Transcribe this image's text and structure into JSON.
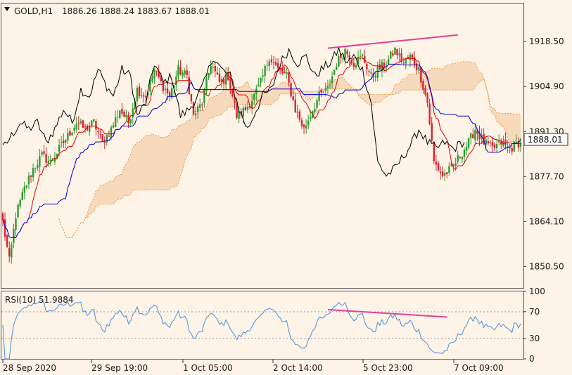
{
  "header": {
    "symbol": "GOLD,H1",
    "ohlc": "1886.26 1888.24 1883.67 1888.01"
  },
  "rsi_header": "RSI(10) 51.9884",
  "current_price": "1888.01",
  "colors": {
    "background": "#fdf3e6",
    "bull": "#2e9b2e",
    "bear": "#dd2030",
    "kijun": "#0000cc",
    "tenkan": "#dd0000",
    "chikou": "#000000",
    "cloud": "#e8964a",
    "trendline": "#e0409a",
    "rsi": "#4a90e0"
  },
  "chart_data": [
    {
      "type": "candlestick",
      "title": "GOLD,H1",
      "indicators": [
        "Ichimoku (tenkan, kijun, chikou, cloud)"
      ],
      "y_ticks": [
        "1918.50",
        "1904.90",
        "1891.30",
        "1877.70",
        "1864.10",
        "1850.50"
      ],
      "ylim": [
        1844,
        1930
      ],
      "x_ticks": [
        "28 Sep 2020",
        "29 Sep 19:00",
        "1 Oct 05:00",
        "2 Oct 14:00",
        "5 Oct 23:00",
        "7 Oct 09:00"
      ],
      "last_price": 1888.01,
      "close_path": [
        [
          0,
          1864
        ],
        [
          3,
          1852
        ],
        [
          6,
          1866
        ],
        [
          10,
          1874
        ],
        [
          14,
          1880
        ],
        [
          18,
          1884
        ],
        [
          22,
          1882
        ],
        [
          26,
          1886
        ],
        [
          30,
          1890
        ],
        [
          34,
          1894
        ],
        [
          38,
          1892
        ],
        [
          42,
          1894
        ],
        [
          46,
          1888
        ],
        [
          50,
          1892
        ],
        [
          54,
          1898
        ],
        [
          58,
          1894
        ],
        [
          62,
          1904
        ],
        [
          66,
          1902
        ],
        [
          70,
          1910
        ],
        [
          73,
          1906
        ],
        [
          77,
          1902
        ],
        [
          81,
          1910
        ],
        [
          85,
          1908
        ],
        [
          88,
          1896
        ],
        [
          92,
          1900
        ],
        [
          96,
          1912
        ],
        [
          100,
          1906
        ],
        [
          104,
          1908
        ],
        [
          108,
          1896
        ],
        [
          112,
          1898
        ],
        [
          116,
          1902
        ],
        [
          119,
          1906
        ],
        [
          123,
          1914
        ],
        [
          127,
          1910
        ],
        [
          131,
          1908
        ],
        [
          135,
          1898
        ],
        [
          139,
          1892
        ],
        [
          143,
          1898
        ],
        [
          146,
          1902
        ],
        [
          150,
          1904
        ],
        [
          154,
          1912
        ],
        [
          158,
          1916
        ],
        [
          162,
          1912
        ],
        [
          166,
          1914
        ],
        [
          170,
          1908
        ],
        [
          173,
          1910
        ],
        [
          177,
          1912
        ],
        [
          181,
          1916
        ],
        [
          185,
          1912
        ],
        [
          188,
          1914
        ],
        [
          192,
          1910
        ],
        [
          196,
          1900
        ],
        [
          199,
          1882
        ],
        [
          203,
          1878
        ],
        [
          207,
          1880
        ],
        [
          211,
          1884
        ],
        [
          215,
          1888
        ],
        [
          218,
          1892
        ],
        [
          222,
          1888
        ],
        [
          226,
          1886
        ],
        [
          230,
          1888
        ],
        [
          234,
          1886
        ],
        [
          238,
          1888
        ]
      ],
      "trendline": {
        "from": [
          150,
          1916.5
        ],
        "to": [
          210,
          1920.5
        ]
      }
    },
    {
      "type": "line",
      "title": "RSI(10)",
      "last_value": 51.9884,
      "y_ticks": [
        "100",
        "70",
        "30",
        "0"
      ],
      "ylim": [
        0,
        100
      ],
      "levels": [
        70,
        30
      ],
      "trendline": {
        "from": [
          150,
          73
        ],
        "to": [
          205,
          62
        ]
      }
    }
  ]
}
